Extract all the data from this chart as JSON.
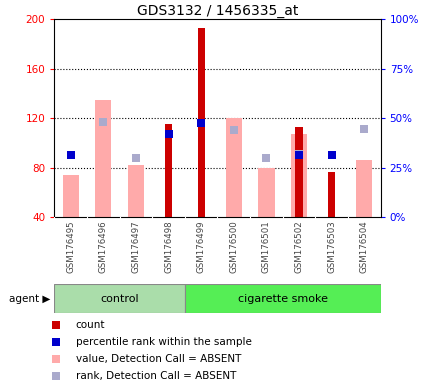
{
  "title": "GDS3132 / 1456335_at",
  "samples": [
    "GSM176495",
    "GSM176496",
    "GSM176497",
    "GSM176498",
    "GSM176499",
    "GSM176500",
    "GSM176501",
    "GSM176502",
    "GSM176503",
    "GSM176504"
  ],
  "groups": [
    "control",
    "control",
    "control",
    "control",
    "cigarette smoke",
    "cigarette smoke",
    "cigarette smoke",
    "cigarette smoke",
    "cigarette smoke",
    "cigarette smoke"
  ],
  "samples_data": {
    "GSM176495": {
      "count": null,
      "percentile": 90,
      "value_absent": 74,
      "rank_absent": 90
    },
    "GSM176496": {
      "count": null,
      "percentile": null,
      "value_absent": 135,
      "rank_absent": 117
    },
    "GSM176497": {
      "count": null,
      "percentile": null,
      "value_absent": 82,
      "rank_absent": 88
    },
    "GSM176498": {
      "count": 115,
      "percentile": 107,
      "value_absent": null,
      "rank_absent": null
    },
    "GSM176499": {
      "count": 193,
      "percentile": 116,
      "value_absent": null,
      "rank_absent": null
    },
    "GSM176500": {
      "count": null,
      "percentile": null,
      "value_absent": 120,
      "rank_absent": 110
    },
    "GSM176501": {
      "count": null,
      "percentile": null,
      "value_absent": 80,
      "rank_absent": 88
    },
    "GSM176502": {
      "count": 113,
      "percentile": 90,
      "value_absent": 107,
      "rank_absent": 91
    },
    "GSM176503": {
      "count": 76,
      "percentile": 90,
      "value_absent": null,
      "rank_absent": null
    },
    "GSM176504": {
      "count": null,
      "percentile": null,
      "value_absent": 86,
      "rank_absent": 111
    }
  },
  "ylim_left": [
    40,
    200
  ],
  "ylim_right": [
    0,
    100
  ],
  "yticks_left": [
    40,
    80,
    120,
    160,
    200
  ],
  "yticks_right": [
    0,
    25,
    50,
    75,
    100
  ],
  "color_count": "#cc0000",
  "color_percentile": "#0000cc",
  "color_value_absent": "#ffaaaa",
  "color_rank_absent": "#aaaacc",
  "color_control_bg": "#aaddaa",
  "color_smoke_bg": "#55ee55",
  "color_xticklabels_bg": "#cccccc"
}
